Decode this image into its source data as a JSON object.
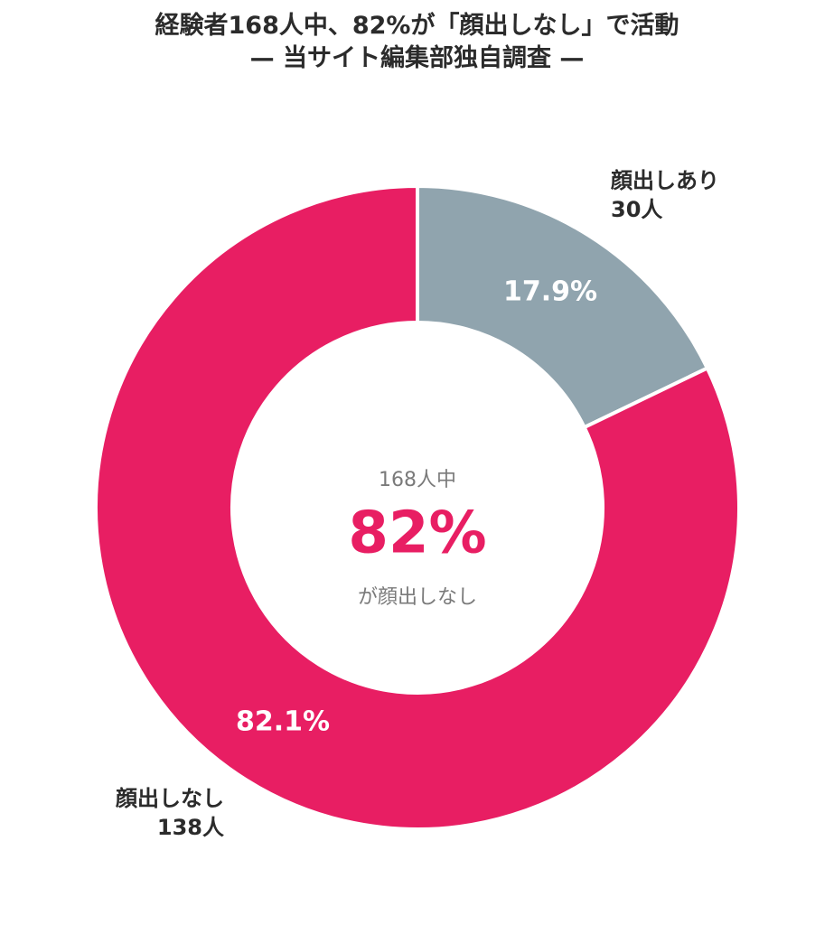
{
  "title_line1": "経験者168人中、82%が「顔出しなし」で活動",
  "title_line2": "— 当サイト編集部独自調査 —",
  "center": {
    "top": "168人中",
    "big": "82%",
    "bottom": "が顔出しなし"
  },
  "colors": {
    "nashi": "#e81e63",
    "ari": "#90a4ae",
    "center_big": "#e81e63",
    "center_small": "#7a7a7a",
    "title": "#2b2b2b"
  },
  "chart_data": {
    "type": "pie",
    "variant": "donut",
    "title": "経験者168人中、82%が「顔出しなし」で活動",
    "subtitle": "— 当サイト編集部独自調査 —",
    "slices": [
      {
        "label": "顔出しあり",
        "count": "30人",
        "value": 30,
        "percent_label": "17.9%"
      },
      {
        "label": "顔出しなし",
        "count": "138人",
        "value": 138,
        "percent_label": "82.1%"
      }
    ]
  }
}
